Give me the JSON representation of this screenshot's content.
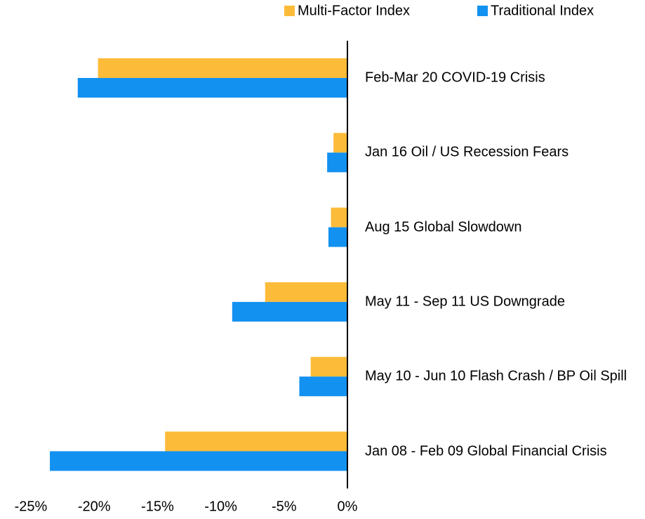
{
  "chart_data": {
    "type": "hbar",
    "categories": [
      "Feb-Mar 20 COVID-19 Crisis",
      "Jan 16 Oil / US Recession Fears",
      "Aug 15 Global Slowdown",
      "May 11 - Sep 11 US Downgrade",
      "May 10 - Jun 10 Flash Crash / BP Oil Spill",
      "Jan 08 - Feb 09 Global Financial Crisis"
    ],
    "series": [
      {
        "name": "Multi-Factor Index",
        "color": "#fdbb3a",
        "values": [
          -19.7,
          -1.1,
          -1.3,
          -6.5,
          -2.9,
          -14.4
        ]
      },
      {
        "name": "Traditional Index",
        "color": "#1391f0",
        "values": [
          -21.3,
          -1.6,
          -1.5,
          -9.1,
          -3.8,
          -23.5
        ]
      }
    ],
    "xlim": [
      -25,
      0
    ],
    "xticks": [
      {
        "value": -25,
        "label": "-25%"
      },
      {
        "value": -20,
        "label": "-20%"
      },
      {
        "value": -15,
        "label": "-15%"
      },
      {
        "value": -10,
        "label": "-10%"
      },
      {
        "value": -5,
        "label": "-5%"
      },
      {
        "value": 0,
        "label": "0%"
      }
    ],
    "legend": "top-right"
  }
}
